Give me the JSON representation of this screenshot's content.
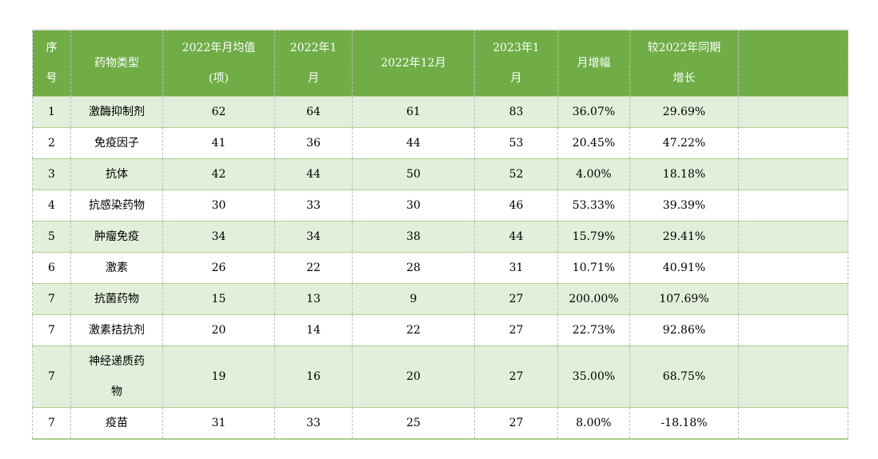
{
  "colors": {
    "header_bg": "#70AD47",
    "header_text": "#FFFFFF",
    "band_green": "#E2EFDA",
    "band_white": "#FFFFFF",
    "row_border": "#A9D08E",
    "column_border_dashed": "#BFBFBF",
    "body_text": "#000000"
  },
  "table": {
    "columns": [
      {
        "label": "序\n号"
      },
      {
        "label": "药物类型"
      },
      {
        "label": "2022年月均值\n(项)"
      },
      {
        "label": "2022年1\n月"
      },
      {
        "label": "2022年12月"
      },
      {
        "label": "2023年1\n月"
      },
      {
        "label": "月增幅"
      },
      {
        "label": "较2022年同期\n增长"
      },
      {
        "label": ""
      }
    ],
    "rows": [
      [
        "1",
        "激酶抑制剂",
        "62",
        "64",
        "61",
        "83",
        "36.07%",
        "29.69%",
        ""
      ],
      [
        "2",
        "免疫因子",
        "41",
        "36",
        "44",
        "53",
        "20.45%",
        "47.22%",
        ""
      ],
      [
        "3",
        "抗体",
        "42",
        "44",
        "50",
        "52",
        "4.00%",
        "18.18%",
        ""
      ],
      [
        "4",
        "抗感染药物",
        "30",
        "33",
        "30",
        "46",
        "53.33%",
        "39.39%",
        ""
      ],
      [
        "5",
        "肿瘤免疫",
        "34",
        "34",
        "38",
        "44",
        "15.79%",
        "29.41%",
        ""
      ],
      [
        "6",
        "激素",
        "26",
        "22",
        "28",
        "31",
        "10.71%",
        "40.91%",
        ""
      ],
      [
        "7",
        "抗菌药物",
        "15",
        "13",
        "9",
        "27",
        "200.00%",
        "107.69%",
        ""
      ],
      [
        "7",
        "激素拮抗剂",
        "20",
        "14",
        "22",
        "27",
        "22.73%",
        "92.86%",
        ""
      ],
      [
        "7",
        "神经递质药\n物",
        "19",
        "16",
        "20",
        "27",
        "35.00%",
        "68.75%",
        ""
      ],
      [
        "7",
        "疫苗",
        "31",
        "33",
        "25",
        "27",
        "8.00%",
        "-18.18%",
        ""
      ]
    ]
  }
}
